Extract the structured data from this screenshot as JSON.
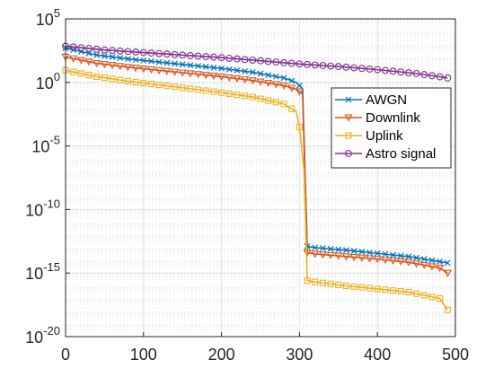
{
  "chart_data": {
    "type": "line",
    "title": "",
    "xlabel": "",
    "ylabel": "",
    "xlim": [
      0,
      500
    ],
    "ylim_log10": [
      -20,
      5
    ],
    "y_scale": "log",
    "grid": true,
    "minor_grid_y": true,
    "legend_placement": "right",
    "x_ticks": [
      {
        "value": 0,
        "label": "0"
      },
      {
        "value": 100,
        "label": "100"
      },
      {
        "value": 200,
        "label": "200"
      },
      {
        "value": 300,
        "label": "300"
      },
      {
        "value": 400,
        "label": "400"
      },
      {
        "value": 500,
        "label": "500"
      }
    ],
    "y_ticks": [
      {
        "exp": 5,
        "base": "10",
        "sup": "5"
      },
      {
        "exp": 0,
        "base": "10",
        "sup": "0"
      },
      {
        "exp": -5,
        "base": "10",
        "sup": "-5"
      },
      {
        "exp": -10,
        "base": "10",
        "sup": "-10"
      },
      {
        "exp": -15,
        "base": "10",
        "sup": "-15"
      },
      {
        "exp": -20,
        "base": "10",
        "sup": "-20"
      }
    ],
    "series": [
      {
        "name": "AWGN",
        "color": "#0072BD",
        "marker": "x",
        "x": [
          0,
          40,
          80,
          120,
          160,
          200,
          240,
          280,
          296,
          304,
          310,
          320,
          360,
          400,
          440,
          480,
          490
        ],
        "log10y": [
          2.7,
          2.15,
          1.85,
          1.6,
          1.35,
          1.1,
          0.8,
          0.35,
          0.0,
          -0.5,
          -12.9,
          -13.0,
          -13.2,
          -13.45,
          -13.7,
          -14.1,
          -14.2
        ]
      },
      {
        "name": "Downlink",
        "color": "#D95319",
        "marker": "triangle-down",
        "x": [
          0,
          40,
          80,
          120,
          160,
          200,
          240,
          280,
          296,
          304,
          310,
          320,
          360,
          400,
          440,
          480,
          490
        ],
        "log10y": [
          2.0,
          1.5,
          1.2,
          0.95,
          0.7,
          0.45,
          0.15,
          -0.25,
          -0.55,
          -0.9,
          -13.4,
          -13.5,
          -13.7,
          -13.9,
          -14.15,
          -14.6,
          -15.0
        ]
      },
      {
        "name": "Uplink",
        "color": "#EDB120",
        "marker": "square",
        "x": [
          0,
          40,
          80,
          120,
          160,
          200,
          240,
          280,
          296,
          300,
          306,
          310,
          320,
          360,
          400,
          440,
          480,
          490
        ],
        "log10y": [
          0.95,
          0.45,
          0.1,
          -0.2,
          -0.5,
          -0.8,
          -1.15,
          -1.7,
          -2.3,
          -3.5,
          -7.0,
          -15.6,
          -15.7,
          -16.0,
          -16.25,
          -16.5,
          -17.0,
          -17.9
        ]
      },
      {
        "name": "Astro signal",
        "color": "#7E2F8E",
        "marker": "circle",
        "x": [
          0,
          50,
          100,
          150,
          200,
          250,
          300,
          350,
          400,
          450,
          490
        ],
        "log10y": [
          2.85,
          2.55,
          2.35,
          2.15,
          1.95,
          1.7,
          1.45,
          1.25,
          1.0,
          0.7,
          0.35
        ]
      }
    ]
  }
}
